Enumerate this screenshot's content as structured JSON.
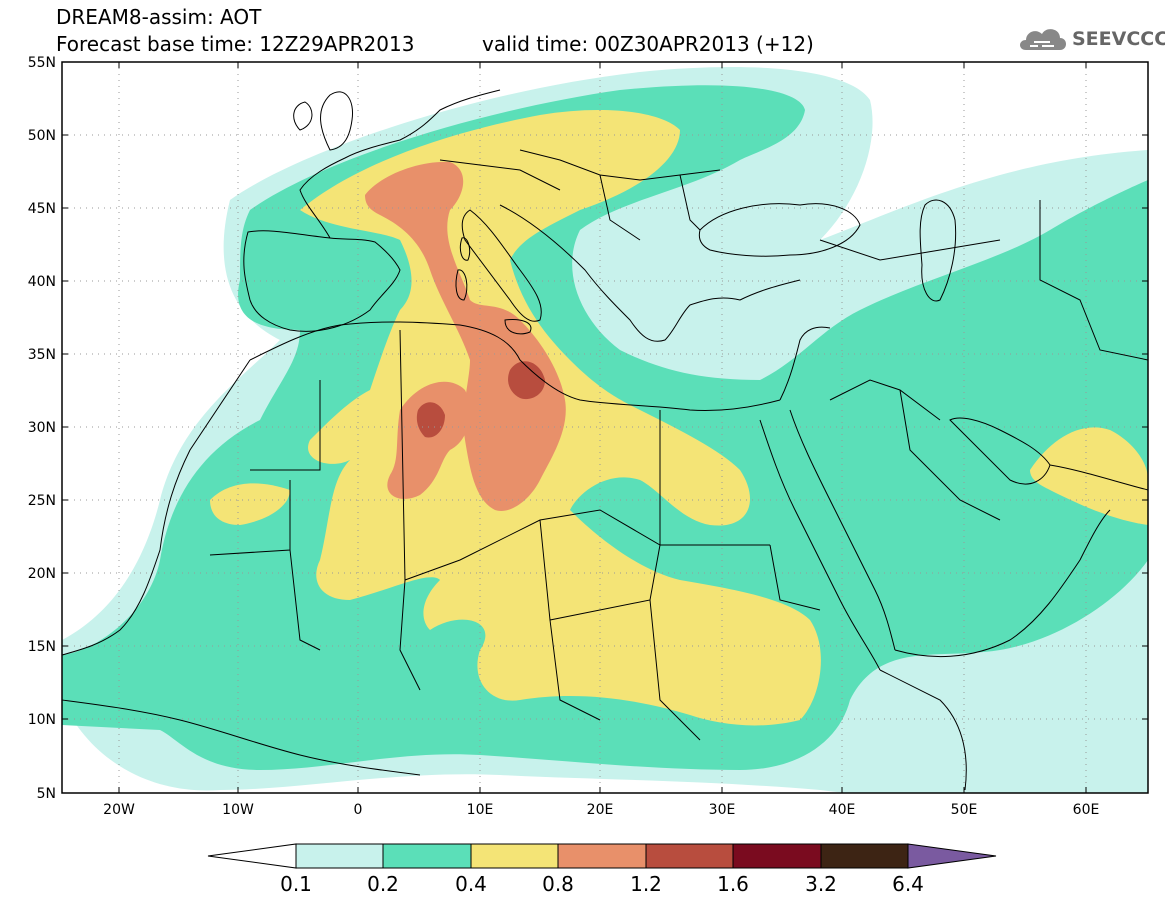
{
  "header": {
    "title": "DREAM8-assim: AOT",
    "base_time": "Forecast base time: 12Z29APR2013",
    "valid_time": "valid time: 00Z30APR2013 (+12)"
  },
  "logo": {
    "text": "SEEVCCC",
    "icon": "cloud-icon"
  },
  "map": {
    "lon_range": [
      -25,
      65
    ],
    "lat_range": [
      5,
      55
    ],
    "lat_labels": [
      "55N",
      "50N",
      "45N",
      "40N",
      "35N",
      "30N",
      "25N",
      "20N",
      "15N",
      "10N",
      "5N"
    ],
    "lat_values": [
      55,
      50,
      45,
      40,
      35,
      30,
      25,
      20,
      15,
      10,
      5
    ],
    "lon_labels": [
      "20W",
      "10W",
      "0",
      "10E",
      "20E",
      "30E",
      "40E",
      "50E",
      "60E"
    ],
    "lon_values": [
      -20,
      -10,
      0,
      10,
      20,
      30,
      40,
      50,
      60
    ]
  },
  "colorbar": {
    "labels": [
      "0.1",
      "0.2",
      "0.4",
      "0.8",
      "1.2",
      "1.6",
      "3.2",
      "6.4"
    ],
    "colors": [
      "#c8f2ec",
      "#5bdfb8",
      "#f4e476",
      "#e8906a",
      "#b84d3e",
      "#7a0b1f",
      "#3d2414",
      "#7a5aa0"
    ],
    "low_color": "#ffffff"
  },
  "colors": {
    "c1": "#c8f2ec",
    "c2": "#5bdfb8",
    "c3": "#f4e476",
    "c4": "#e8906a",
    "c5": "#b84d3e",
    "land_line": "#000000",
    "grid": "#999999"
  }
}
